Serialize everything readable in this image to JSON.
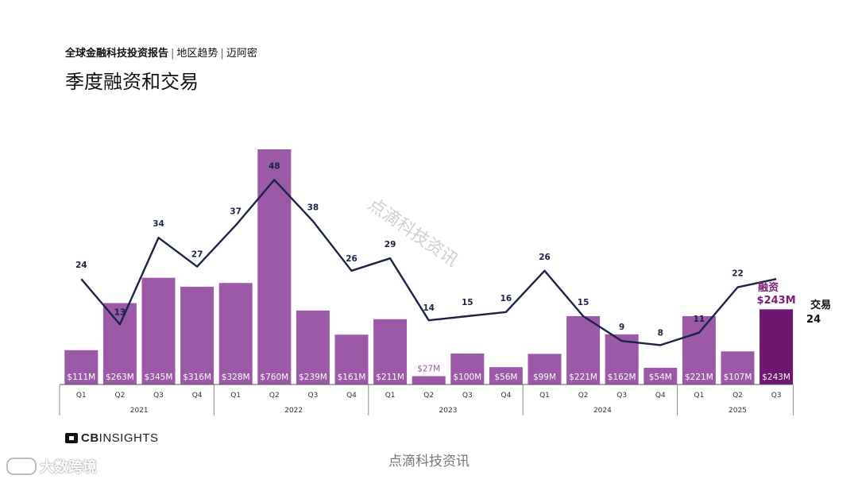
{
  "header": {
    "report": "全球金融科技投资报告",
    "sep1": "|",
    "region": "地区趋势",
    "sep2": "|",
    "city": "迈阿密",
    "title": "季度融资和交易"
  },
  "chart_data": {
    "type": "bar",
    "quarters": [
      "Q1",
      "Q2",
      "Q3",
      "Q4",
      "Q1",
      "Q2",
      "Q3",
      "Q4",
      "Q1",
      "Q2",
      "Q3",
      "Q4",
      "Q1",
      "Q2",
      "Q3",
      "Q4",
      "Q1",
      "Q2",
      "Q3"
    ],
    "years": [
      {
        "label": "2021",
        "count": 4
      },
      {
        "label": "2022",
        "count": 4
      },
      {
        "label": "2023",
        "count": 4
      },
      {
        "label": "2024",
        "count": 4
      },
      {
        "label": "2025",
        "count": 3
      }
    ],
    "series": [
      {
        "name": "融资",
        "values": [
          111,
          263,
          345,
          316,
          328,
          760,
          239,
          161,
          211,
          27,
          100,
          56,
          99,
          221,
          162,
          54,
          221,
          107,
          243
        ],
        "labels": [
          "$111M",
          "$263M",
          "$345M",
          "$316M",
          "$328M",
          "$760M",
          "$239M",
          "$161M",
          "$211M",
          "$27M",
          "$100M",
          "$56M",
          "$99M",
          "$221M",
          "$162M",
          "$54M",
          "$221M",
          "$107M",
          "$243M"
        ]
      },
      {
        "name": "交易",
        "values": [
          24,
          13,
          34,
          27,
          37,
          48,
          38,
          26,
          29,
          14,
          15,
          16,
          26,
          15,
          9,
          8,
          11,
          22,
          24
        ]
      }
    ],
    "funding_ylim": [
      0,
      760
    ],
    "deals_ylim": [
      0,
      48
    ],
    "legend": {
      "funding_label": "融资",
      "funding_value": "$243M",
      "deals_label": "交易",
      "deals_value": "24"
    },
    "colors": {
      "bar": "#9b59a8",
      "bar_highlight": "#6e1770",
      "line": "#1b2447",
      "highlight_text": "#7b1e7a"
    }
  },
  "footer": {
    "logo_cb": "CB",
    "logo_insights": "INSIGHTS",
    "watermark": "点滴科技资讯",
    "watermark_diag": "点滴科技资讯",
    "brand": "大数跨境"
  }
}
